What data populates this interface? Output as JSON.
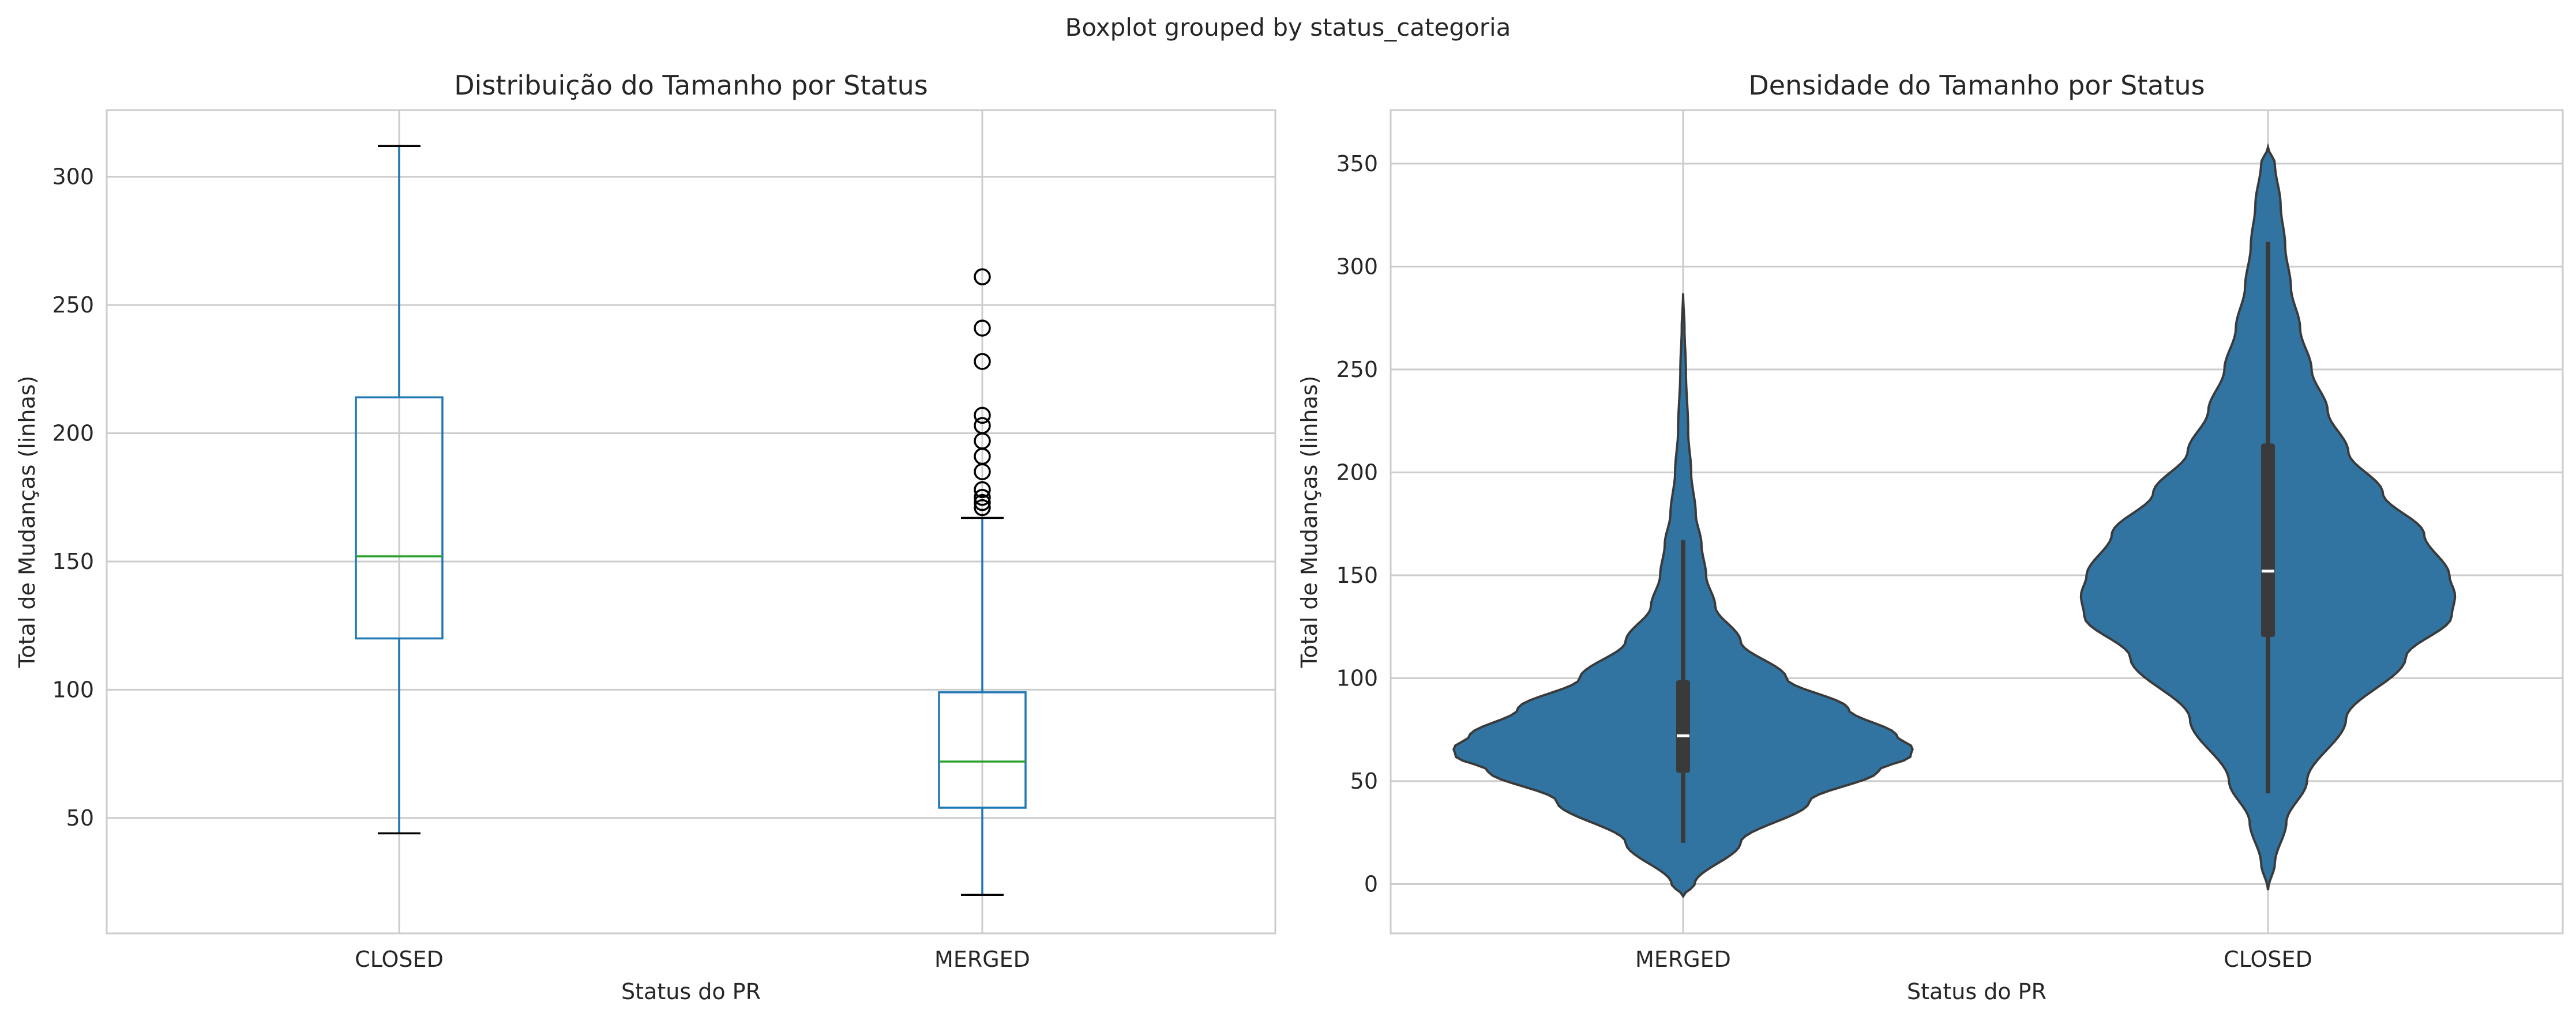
{
  "figure": {
    "suptitle": "Boxplot grouped by status_categoria"
  },
  "chart_data": [
    {
      "type": "box",
      "title": "Distribuição do Tamanho por Status",
      "xlabel": "Status do PR",
      "ylabel": "Total de Mudanças (linhas)",
      "categories": [
        "CLOSED",
        "MERGED"
      ],
      "ylim": [
        5,
        326
      ],
      "yticks": [
        50,
        100,
        150,
        200,
        250,
        300
      ],
      "grid": true,
      "boxes": [
        {
          "category": "CLOSED",
          "whisker_low": 44,
          "q1": 120,
          "median": 152,
          "q3": 214,
          "whisker_high": 312,
          "outliers": []
        },
        {
          "category": "MERGED",
          "whisker_low": 20,
          "q1": 54,
          "median": 72,
          "q3": 99,
          "whisker_high": 167,
          "outliers": [
            171,
            173,
            175,
            178,
            185,
            191,
            197,
            203,
            207,
            228,
            241,
            261
          ]
        }
      ],
      "colors": {
        "box": "#1f77b4",
        "median": "#2ca02c",
        "cap": "#000000",
        "grid": "#cccccc",
        "spine": "#cccccc"
      }
    },
    {
      "type": "violin",
      "title": "Densidade do Tamanho por Status",
      "xlabel": "Status do PR",
      "ylabel": "Total de Mudanças (linhas)",
      "categories": [
        "MERGED",
        "CLOSED"
      ],
      "ylim": [
        -24,
        376
      ],
      "yticks": [
        0,
        50,
        100,
        150,
        200,
        250,
        300,
        350
      ],
      "grid": true,
      "violins": [
        {
          "category": "MERGED",
          "min": 20,
          "q1": 54,
          "median": 72,
          "q3": 99,
          "max": 167,
          "density": [
            [
              -6,
              0.0
            ],
            [
              0,
              0.05
            ],
            [
              20,
              0.25
            ],
            [
              40,
              0.55
            ],
            [
              55,
              0.85
            ],
            [
              62,
              0.99
            ],
            [
              66,
              1.0
            ],
            [
              72,
              0.93
            ],
            [
              85,
              0.72
            ],
            [
              100,
              0.45
            ],
            [
              118,
              0.25
            ],
            [
              135,
              0.14
            ],
            [
              150,
              0.1
            ],
            [
              165,
              0.08
            ],
            [
              180,
              0.055
            ],
            [
              200,
              0.035
            ],
            [
              220,
              0.022
            ],
            [
              250,
              0.012
            ],
            [
              270,
              0.006
            ],
            [
              287,
              0.0
            ]
          ]
        },
        {
          "category": "CLOSED",
          "min": 44,
          "q1": 120,
          "median": 152,
          "q3": 214,
          "max": 312,
          "density": [
            [
              -3,
              0.0
            ],
            [
              10,
              0.03
            ],
            [
              30,
              0.08
            ],
            [
              50,
              0.17
            ],
            [
              80,
              0.34
            ],
            [
              110,
              0.6
            ],
            [
              130,
              0.8
            ],
            [
              140,
              0.815
            ],
            [
              150,
              0.79
            ],
            [
              170,
              0.68
            ],
            [
              190,
              0.5
            ],
            [
              210,
              0.35
            ],
            [
              230,
              0.26
            ],
            [
              250,
              0.19
            ],
            [
              270,
              0.14
            ],
            [
              290,
              0.1
            ],
            [
              310,
              0.075
            ],
            [
              330,
              0.055
            ],
            [
              350,
              0.03
            ],
            [
              358,
              0.0
            ]
          ]
        }
      ],
      "colors": {
        "fill": "#3274a1",
        "edge": "#3a3a3a",
        "inner_box": "#3a3a3a",
        "median": "#ffffff",
        "grid": "#cccccc",
        "spine": "#cccccc"
      }
    }
  ]
}
